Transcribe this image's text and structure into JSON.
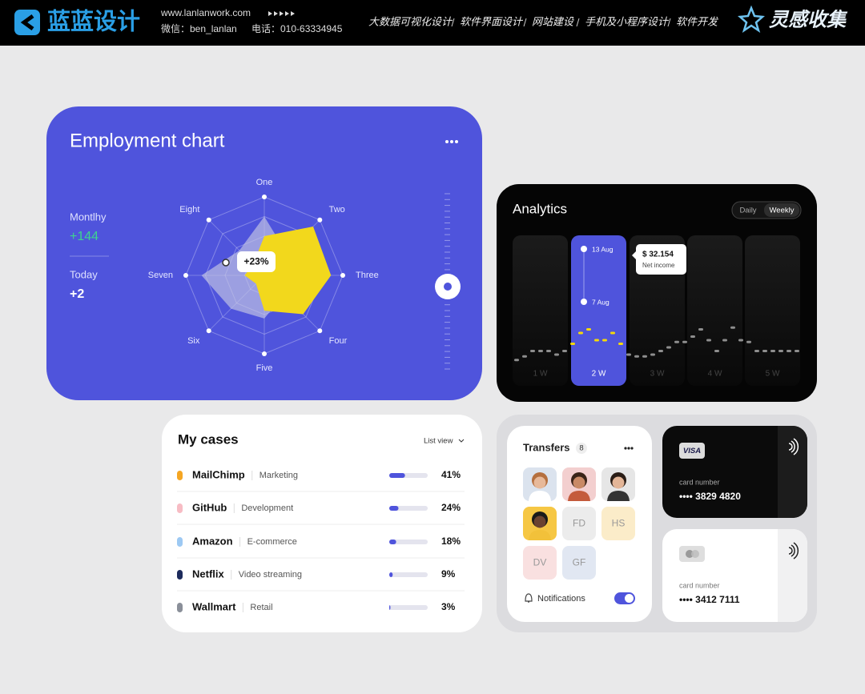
{
  "header": {
    "logo": "蓝蓝设计",
    "website": "www.lanlanwork.com",
    "wechat": "微信：ben_lanlan",
    "phone": "电话：010-63334945",
    "nav": [
      "大数据可视化设计",
      "软件界面设计",
      "网站建设",
      "手机及小程序设计",
      "软件开发"
    ],
    "badge": "灵感收集"
  },
  "employment": {
    "title": "Employment chart",
    "stats": [
      {
        "label": "Montlhy",
        "value": "+144"
      },
      {
        "label": "Today",
        "value": "+2"
      }
    ],
    "chart": {
      "type": "radar",
      "categories": [
        "One",
        "Two",
        "Three",
        "Four",
        "Five",
        "Six",
        "Seven",
        "Eight"
      ],
      "rlim": [
        0,
        100
      ],
      "rticks": [
        25,
        50,
        75,
        100
      ],
      "series": [
        {
          "color": "#c6c8e4",
          "values": [
            75,
            40,
            30,
            35,
            55,
            60,
            80,
            45
          ]
        },
        {
          "color": "#f2d81c",
          "values": [
            50,
            88,
            85,
            70,
            45,
            15,
            25,
            20
          ]
        }
      ],
      "annotation": "+23%"
    }
  },
  "analytics": {
    "title": "Analytics",
    "toggle": [
      "Daily",
      "Weekly"
    ],
    "weeks": [
      "1 W",
      "2 W",
      "3 W",
      "4 W",
      "5 W"
    ],
    "dates": [
      "13 Aug",
      "7 Aug"
    ],
    "tooltip": {
      "value": "$ 32.154",
      "label": "Net income"
    },
    "chart": {
      "type": "line",
      "values": [
        0.5,
        1.5,
        3,
        3,
        3,
        2,
        3,
        5,
        8,
        9,
        6,
        6,
        8,
        5,
        2,
        1.5,
        1.5,
        2,
        3,
        4,
        5.5,
        5.5,
        7,
        9,
        6,
        3,
        6,
        9.5,
        6,
        5.5,
        3,
        3,
        3,
        3,
        3,
        3
      ],
      "ylim": [
        0,
        10
      ],
      "color": "#8e8e8e",
      "highlight_color": "#f5d90a"
    }
  },
  "cases": {
    "title": "My cases",
    "view": "List view",
    "xlim": [
      0,
      100
    ],
    "rows": [
      {
        "name": "MailChimp",
        "category": "Marketing",
        "value": 41,
        "value_label": "41%",
        "color": "#f5a623"
      },
      {
        "name": "GitHub",
        "category": "Development",
        "value": 24,
        "value_label": "24%",
        "color": "#f7bcc4"
      },
      {
        "name": "Amazon",
        "category": "E-commerce",
        "value": 18,
        "value_label": "18%",
        "color": "#9dc9f3"
      },
      {
        "name": "Netflix",
        "category": "Video streaming",
        "value": 9,
        "value_label": "9%",
        "color": "#1d2b5c"
      },
      {
        "name": "Wallmart",
        "category": "Retail",
        "value": 3,
        "value_label": "3%",
        "color": "#8a8f99"
      }
    ]
  },
  "transfers": {
    "title": "Transfers",
    "count": 8,
    "initials": [
      "FD",
      "HS",
      "DV",
      "GF"
    ],
    "notifications": "Notifications"
  },
  "cards": [
    {
      "brand": "VISA",
      "label": "card number",
      "number": "•••• 3829 4820"
    },
    {
      "label": "card number",
      "number": "•••• 3412 7111"
    }
  ]
}
